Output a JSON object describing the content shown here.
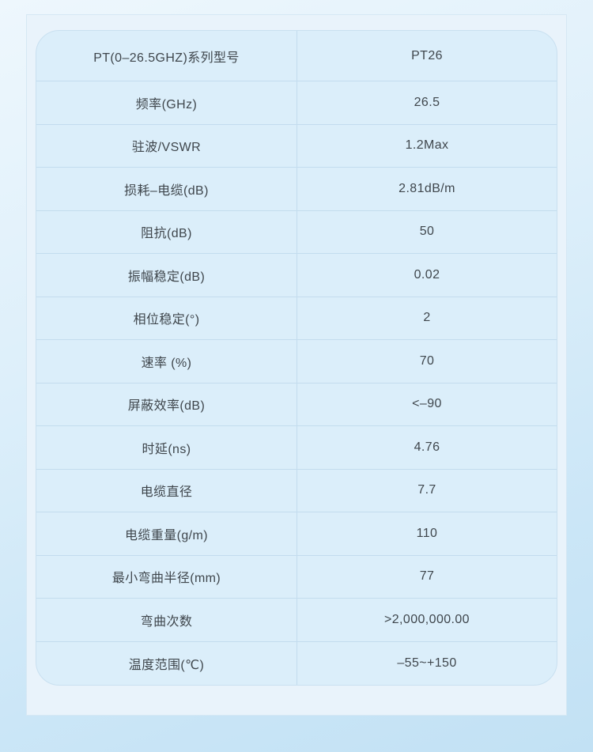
{
  "colors": {
    "page_background_top": "#eef7fd",
    "page_background_bottom": "#c2e1f4",
    "card_background": "#e9f3fb",
    "table_cell_background": "#dbeefa",
    "grid_line": "#c3dcee",
    "text": "#3f464c"
  },
  "spec_table": {
    "rows": [
      {
        "label": "PT(0–26.5GHZ)系列型号",
        "value": "PT26"
      },
      {
        "label": "频率(GHz)",
        "value": "26.5"
      },
      {
        "label": "驻波/VSWR",
        "value": "1.2Max"
      },
      {
        "label": "损耗–电缆(dB)",
        "value": "2.81dB/m"
      },
      {
        "label": "阻抗(dB)",
        "value": "50"
      },
      {
        "label": "振幅稳定(dB)",
        "value": "0.02"
      },
      {
        "label": "相位稳定(°)",
        "value": "2"
      },
      {
        "label": "速率 (%)",
        "value": "70"
      },
      {
        "label": "屏蔽效率(dB)",
        "value": "<–90"
      },
      {
        "label": "时延(ns)",
        "value": "4.76"
      },
      {
        "label": "电缆直径",
        "value": "7.7"
      },
      {
        "label": "电缆重量(g/m)",
        "value": "110"
      },
      {
        "label": "最小弯曲半径(mm)",
        "value": "77"
      },
      {
        "label": "弯曲次数",
        "value": ">2,000,000.00"
      },
      {
        "label": "温度范围(℃)",
        "value": "–55~+150"
      }
    ]
  }
}
